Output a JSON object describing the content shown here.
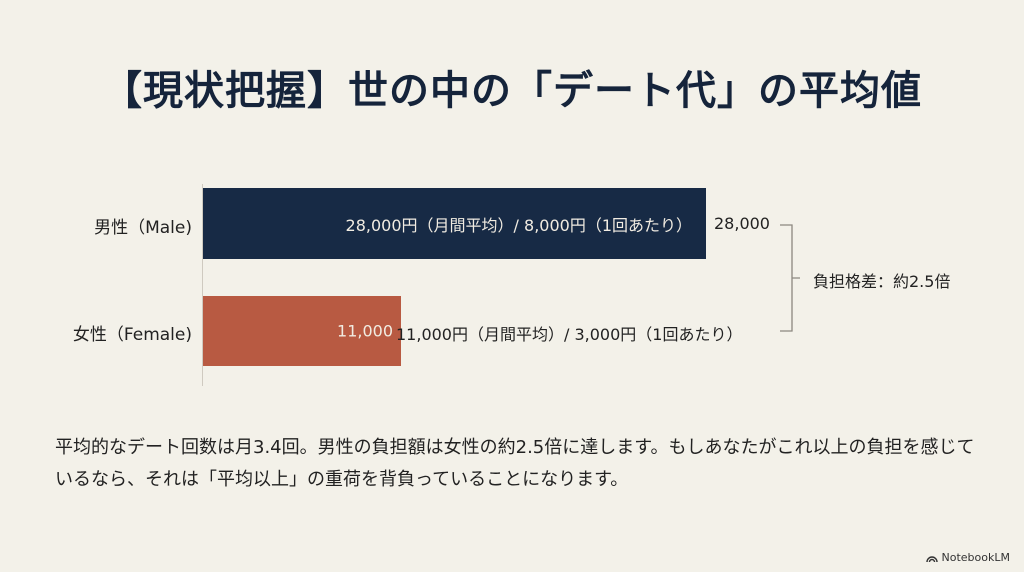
{
  "title": "【現状把握】世の中の「デート代」の平均値",
  "chart_data": {
    "type": "bar",
    "orientation": "horizontal",
    "title": "【現状把握】世の中の「デート代」の平均値",
    "categories": [
      "男性（Male)",
      "女性（Female)"
    ],
    "values": [
      28000,
      11000
    ],
    "xlabel": "",
    "ylabel": "",
    "xlim": [
      0,
      28000
    ],
    "grid": false,
    "legend": "none",
    "bar_colors": [
      "#172a45",
      "#b85a42"
    ],
    "annotations": [
      "28,000円（月間平均）/ 8,000円（1回あたり）",
      "11,000円（月間平均）/ 3,000円（1回あたり）",
      "負担格差：約2.5倍"
    ]
  },
  "bars": {
    "male": {
      "label": "男性（Male)",
      "inner_text": "28,000円（月間平均）/ 8,000円（1回あたり）",
      "value_label": "28,000",
      "color": "#172a45"
    },
    "female": {
      "label": "女性（Female)",
      "inner_text": "11,000",
      "outside_text": "11,000円（月間平均）/ 3,000円（1回あたり）",
      "color": "#b85a42"
    }
  },
  "gap_label": "負担格差：約2.5倍",
  "body_text": "平均的なデート回数は月3.4回。男性の負担額は女性の約2.5倍に達します。もしあなたがこれ以上の負担を感じているなら、それは「平均以上」の重荷を背負っていることになります。",
  "brand": "NotebookLM"
}
